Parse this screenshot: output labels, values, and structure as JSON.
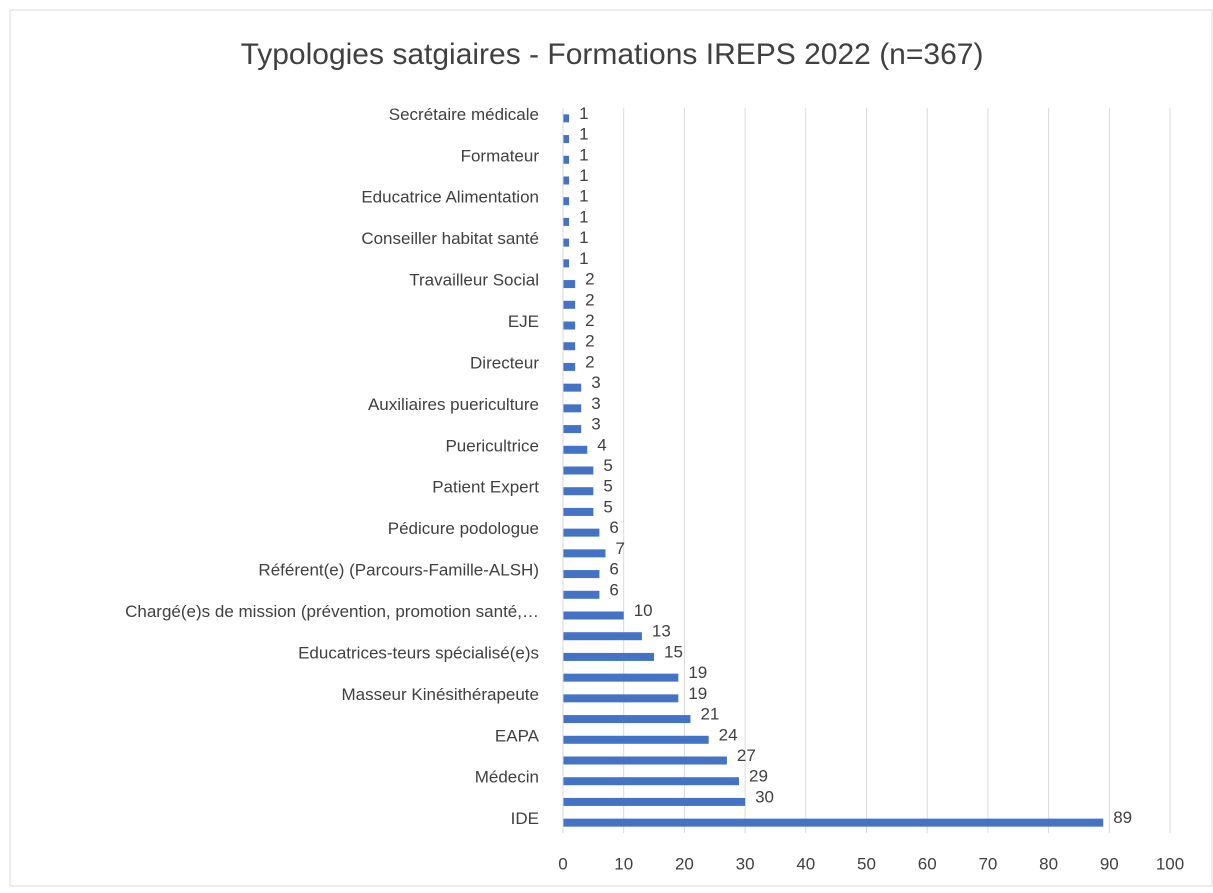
{
  "chart_data": {
    "type": "barh",
    "title": "Typologies satgiaires - Formations IREPS 2022 (n=367)",
    "categories": [
      "Secrétaire médicale",
      null,
      "Formateur",
      null,
      "Educatrice Alimentation",
      null,
      "Conseiller habitat santé",
      null,
      "Travailleur Social",
      null,
      "EJE",
      null,
      "Directeur",
      null,
      "Auxiliaires puericulture",
      null,
      "Puericultrice",
      null,
      "Patient Expert",
      null,
      "Pédicure podologue",
      null,
      "Référent(e) (Parcours-Famille-ALSH)",
      null,
      "Chargé(e)s de mission (prévention, promotion santé,…",
      null,
      "Educatrices-teurs spécialisé(e)s",
      null,
      "Masseur Kinésithérapeute",
      null,
      "EAPA",
      null,
      "Médecin ",
      null,
      "IDE"
    ],
    "values": [
      1,
      1,
      1,
      1,
      1,
      1,
      1,
      1,
      2,
      2,
      2,
      2,
      2,
      3,
      3,
      3,
      4,
      5,
      5,
      5,
      6,
      7,
      6,
      6,
      10,
      13,
      15,
      19,
      19,
      21,
      24,
      27,
      29,
      30,
      89
    ],
    "color": "#4472c4",
    "xlim": [
      0,
      100
    ],
    "xticks": [
      0,
      10,
      20,
      30,
      40,
      50,
      60,
      70,
      80,
      90,
      100
    ],
    "grid": true
  }
}
